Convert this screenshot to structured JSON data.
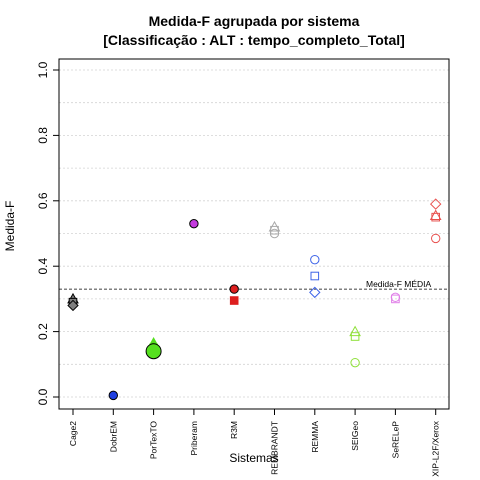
{
  "chart_data": {
    "type": "scatter",
    "title_line1": "Medida-F agrupada por sistema",
    "title_line2": "[Classificação : ALT : tempo_completo_Total]",
    "xlabel": "Sistemas",
    "ylabel": "Medida-F",
    "ylim": [
      0,
      1
    ],
    "yticks": [
      "0.0",
      "0.2",
      "0.4",
      "0.6",
      "0.8",
      "1.0"
    ],
    "grid": true,
    "categories": [
      "Cage2",
      "DobrEM",
      "PorTexTO",
      "Priberam",
      "R3M",
      "REMBRANDT",
      "REMMA",
      "SEIGeo",
      "SeRELeP",
      "XIP-L2F/Xerox"
    ],
    "reference_line": {
      "label": "Medida-F MÉDIA",
      "value": 0.33
    },
    "points": [
      {
        "category": "Cage2",
        "y": 0.3,
        "marker": "triangle",
        "color": "#7f7f7f",
        "filled": true
      },
      {
        "category": "Cage2",
        "y": 0.29,
        "marker": "square",
        "color": "#7f7f7f",
        "filled": true
      },
      {
        "category": "Cage2",
        "y": 0.28,
        "marker": "diamond",
        "color": "#7f7f7f",
        "filled": true
      },
      {
        "category": "DobrEM",
        "y": 0.005,
        "marker": "circle",
        "color": "#1f3fe0",
        "filled": true
      },
      {
        "category": "PorTexTO",
        "y": 0.165,
        "marker": "triangle",
        "color": "#55e01f",
        "filled": true
      },
      {
        "category": "PorTexTO",
        "y": 0.15,
        "marker": "square",
        "color": "#55e01f",
        "filled": true
      },
      {
        "category": "PorTexTO",
        "y": 0.14,
        "marker": "circle",
        "color": "#55e01f",
        "filled": true,
        "large": true
      },
      {
        "category": "Priberam",
        "y": 0.53,
        "marker": "circle",
        "color": "#c43adf",
        "filled": true
      },
      {
        "category": "R3M",
        "y": 0.33,
        "marker": "circle",
        "color": "#dd1f1f",
        "filled": true
      },
      {
        "category": "R3M",
        "y": 0.295,
        "marker": "square",
        "color": "#dd1f1f",
        "filled": true
      },
      {
        "category": "REMBRANDT",
        "y": 0.52,
        "marker": "triangle",
        "color": "#aaaaaa",
        "filled": false
      },
      {
        "category": "REMBRANDT",
        "y": 0.51,
        "marker": "square",
        "color": "#aaaaaa",
        "filled": false
      },
      {
        "category": "REMBRANDT",
        "y": 0.5,
        "marker": "circle",
        "color": "#aaaaaa",
        "filled": false
      },
      {
        "category": "REMMA",
        "y": 0.42,
        "marker": "circle",
        "color": "#3e64e8",
        "filled": false
      },
      {
        "category": "REMMA",
        "y": 0.37,
        "marker": "square",
        "color": "#3e64e8",
        "filled": false
      },
      {
        "category": "REMMA",
        "y": 0.32,
        "marker": "diamond",
        "color": "#3e64e8",
        "filled": false
      },
      {
        "category": "SEIGeo",
        "y": 0.2,
        "marker": "triangle",
        "color": "#8fe03a",
        "filled": false
      },
      {
        "category": "SEIGeo",
        "y": 0.185,
        "marker": "square",
        "color": "#8fe03a",
        "filled": false
      },
      {
        "category": "SEIGeo",
        "y": 0.105,
        "marker": "circle",
        "color": "#8fe03a",
        "filled": false
      },
      {
        "category": "SeRELeP",
        "y": 0.305,
        "marker": "circle",
        "color": "#e07ee8",
        "filled": false
      },
      {
        "category": "SeRELeP",
        "y": 0.3,
        "marker": "square",
        "color": "#e07ee8",
        "filled": false
      },
      {
        "category": "XIP-L2F/Xerox",
        "y": 0.59,
        "marker": "diamond",
        "color": "#e8504e",
        "filled": false
      },
      {
        "category": "XIP-L2F/Xerox",
        "y": 0.555,
        "marker": "triangle",
        "color": "#e8504e",
        "filled": false
      },
      {
        "category": "XIP-L2F/Xerox",
        "y": 0.55,
        "marker": "square",
        "color": "#e8504e",
        "filled": false
      },
      {
        "category": "XIP-L2F/Xerox",
        "y": 0.485,
        "marker": "circle",
        "color": "#e8504e",
        "filled": false
      }
    ]
  }
}
